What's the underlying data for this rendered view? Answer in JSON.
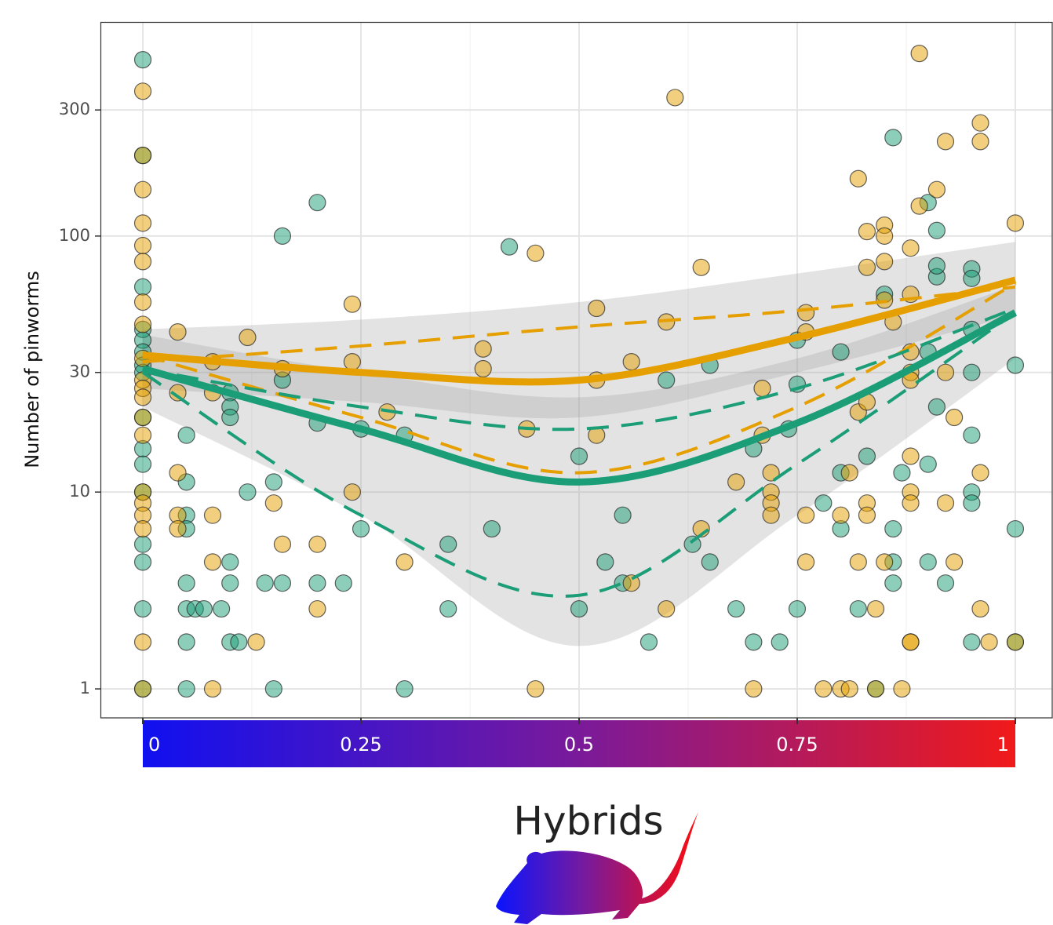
{
  "chart_data": {
    "type": "scatter",
    "y_label": "Number of pinworms",
    "x_label": "Hybrids",
    "xlim": [
      -0.0486,
      1.0423
    ],
    "xticks": [
      0,
      0.25,
      0.5,
      0.75,
      1
    ],
    "x_minor_grid": [
      0.125,
      0.375,
      0.625,
      0.875
    ],
    "ylim": [
      0.556,
      644
    ],
    "yticks": [
      1,
      10,
      30,
      100,
      300
    ],
    "yscale": "log1p",
    "grid": true,
    "colorbar": [
      "#1010f0",
      "#f01a1a"
    ],
    "series": [
      {
        "color": "#1b9e77",
        "x": [
          0,
          0,
          0,
          0,
          0,
          0,
          0,
          0,
          0,
          0,
          0,
          0,
          0,
          0,
          0,
          0,
          0.05,
          0.05,
          0.05,
          0.05,
          0.05,
          0.05,
          0.05,
          0.05,
          0.06,
          0.07,
          0.09,
          0.1,
          0.1,
          0.1,
          0.1,
          0.1,
          0.1,
          0.11,
          0.12,
          0.14,
          0.15,
          0.15,
          0.16,
          0.16,
          0.16,
          0.2,
          0.2,
          0.2,
          0.23,
          0.25,
          0.25,
          0.3,
          0.3,
          0.35,
          0.35,
          0.4,
          0.42,
          0.5,
          0.5,
          0.53,
          0.55,
          0.55,
          0.58,
          0.6,
          0.63,
          0.65,
          0.65,
          0.68,
          0.7,
          0.7,
          0.73,
          0.74,
          0.75,
          0.75,
          0.75,
          0.78,
          0.8,
          0.8,
          0.8,
          0.82,
          0.83,
          0.84,
          0.85,
          0.86,
          0.86,
          0.86,
          0.86,
          0.87,
          0.9,
          0.9,
          0.9,
          0.9,
          0.91,
          0.91,
          0.91,
          0.91,
          0.92,
          0.95,
          0.95,
          0.95,
          0.95,
          0.95,
          0.95,
          0.95,
          0.95,
          1,
          1,
          1
        ],
        "values": [
          464,
          202,
          64,
          44,
          40,
          36,
          32,
          30,
          20,
          15,
          13,
          10,
          6,
          5,
          3,
          1,
          17,
          11,
          8,
          7,
          4,
          3,
          2,
          1,
          3,
          3,
          3,
          25,
          22,
          20,
          5,
          4,
          2,
          2,
          10,
          4,
          1,
          11,
          100,
          28,
          4,
          134,
          19,
          4,
          4,
          18,
          7,
          1,
          17,
          6,
          3,
          7,
          91,
          14,
          3,
          5,
          4,
          8,
          2,
          28,
          6,
          5,
          32,
          3,
          15,
          2,
          2,
          18,
          3,
          27,
          40,
          9,
          12,
          36,
          7,
          3,
          14,
          1,
          60,
          236,
          5,
          7,
          4,
          12,
          134,
          36,
          13,
          5,
          105,
          22,
          70,
          77,
          4,
          75,
          69,
          44,
          30,
          17,
          10,
          9,
          2,
          32,
          7,
          2
        ]
      },
      {
        "color": "#e69f00",
        "x": [
          0,
          0,
          0,
          0,
          0,
          0,
          0,
          0,
          0,
          0,
          0,
          0,
          0,
          0,
          0,
          0,
          0,
          0,
          0,
          0,
          0.04,
          0.04,
          0.04,
          0.04,
          0.04,
          0.08,
          0.08,
          0.08,
          0.08,
          0.08,
          0.13,
          0.12,
          0.16,
          0.15,
          0.16,
          0.2,
          0.2,
          0.24,
          0.24,
          0.24,
          0.28,
          0.3,
          0.39,
          0.39,
          0.44,
          0.45,
          0.45,
          0.52,
          0.52,
          0.52,
          0.56,
          0.56,
          0.6,
          0.61,
          0.6,
          0.64,
          0.64,
          0.68,
          0.7,
          0.71,
          0.71,
          0.72,
          0.72,
          0.72,
          0.72,
          0.76,
          0.76,
          0.76,
          0.76,
          0.78,
          0.8,
          0.82,
          0.81,
          0.82,
          0.81,
          0.82,
          0.8,
          0.83,
          0.83,
          0.83,
          0.83,
          0.83,
          0.84,
          0.85,
          0.85,
          0.85,
          0.85,
          0.85,
          0.84,
          0.86,
          0.88,
          0.87,
          0.88,
          0.88,
          0.88,
          0.88,
          0.88,
          0.88,
          0.88,
          0.88,
          0.88,
          0.89,
          0.89,
          0.92,
          0.91,
          0.92,
          0.92,
          0.93,
          0.93,
          0.96,
          0.96,
          0.96,
          0.96,
          0.97,
          1,
          1
        ],
        "values": [
          353,
          202,
          150,
          112,
          92,
          80,
          56,
          46,
          34,
          28,
          26,
          24,
          20,
          17,
          10,
          9,
          8,
          7,
          2,
          1,
          43,
          25,
          12,
          8,
          7,
          33,
          25,
          8,
          5,
          1,
          2,
          41,
          31,
          9,
          6,
          6,
          3,
          33,
          10,
          55,
          21,
          5,
          37,
          31,
          18,
          86,
          1,
          28,
          17,
          53,
          4,
          33,
          47,
          334,
          3,
          76,
          7,
          11,
          1,
          26,
          17,
          12,
          10,
          9,
          8,
          51,
          43,
          5,
          8,
          1,
          1,
          165,
          1,
          21,
          12,
          5,
          8,
          104,
          76,
          9,
          8,
          23,
          1,
          110,
          100,
          80,
          57,
          5,
          3,
          47,
          2,
          1,
          90,
          60,
          36,
          30,
          28,
          14,
          10,
          9,
          2,
          490,
          130,
          228,
          150,
          30,
          9,
          20,
          5,
          268,
          228,
          12,
          3,
          2,
          112,
          2
        ]
      }
    ],
    "fits": [
      {
        "color": "#e69f00",
        "x": [
          0,
          0.25,
          0.5,
          0.75,
          1
        ],
        "values": [
          35,
          30,
          28,
          41,
          68
        ],
        "lower": [
          26,
          23,
          20,
          30,
          50
        ],
        "upper": [
          44,
          48,
          56,
          72,
          95
        ]
      },
      {
        "color": "#1b9e77",
        "x": [
          0,
          0.25,
          0.5,
          0.75,
          1
        ],
        "values": [
          31,
          18,
          11,
          19,
          51
        ],
        "lower": [
          22,
          8,
          1.9,
          8,
          34
        ],
        "upper": [
          42,
          30,
          24,
          34,
          65
        ]
      },
      {
        "color": "#e69f00",
        "dash": true,
        "x": [
          0,
          0.25,
          0.5,
          0.75,
          1
        ],
        "values": [
          33,
          38,
          45,
          52,
          64
        ],
        "lower": null,
        "upper": null
      },
      {
        "color": "#e69f00",
        "dash": true,
        "x": [
          0,
          0.25,
          0.5,
          0.75,
          1
        ],
        "values": [
          35,
          20,
          12,
          22,
          66
        ],
        "lower": null,
        "upper": null
      },
      {
        "color": "#1b9e77",
        "dash": true,
        "x": [
          0,
          0.25,
          0.5,
          0.75,
          1
        ],
        "values": [
          31,
          22,
          18,
          26,
          53
        ],
        "lower": null,
        "upper": null
      },
      {
        "color": "#1b9e77",
        "dash": true,
        "x": [
          0,
          0.25,
          0.5,
          0.75,
          1
        ],
        "values": [
          30,
          8,
          3.5,
          13,
          51
        ],
        "lower": null,
        "upper": null
      }
    ]
  }
}
